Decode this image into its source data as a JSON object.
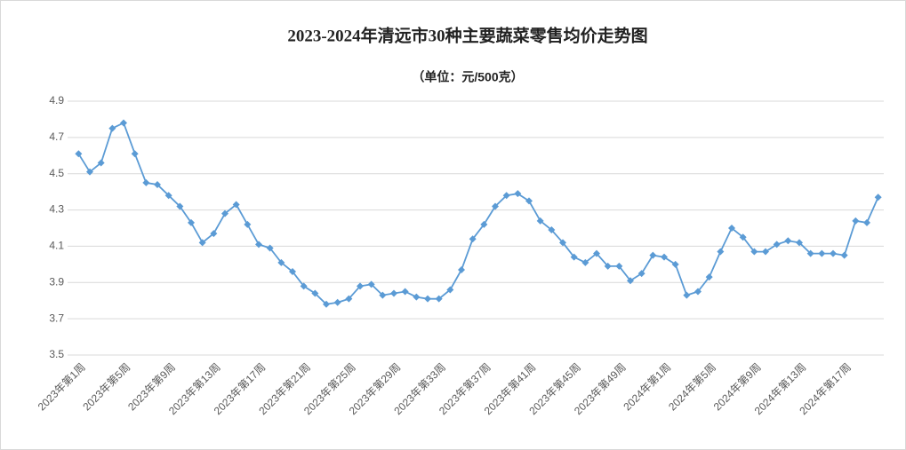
{
  "chart_data": {
    "type": "line",
    "title": "2023-2024年清远市30种主要蔬菜零售均价走势图",
    "subtitle": "（单位：元/500克）",
    "categories": [
      "2023年第1周",
      null,
      null,
      null,
      "2023年第5周",
      null,
      null,
      null,
      "2023年第9周",
      null,
      null,
      null,
      "2023年第13周",
      null,
      null,
      null,
      "2023年第17周",
      null,
      null,
      null,
      "2023年第21周",
      null,
      null,
      null,
      "2023年第25周",
      null,
      null,
      null,
      "2023年第29周",
      null,
      null,
      null,
      "2023年第33周",
      null,
      null,
      null,
      "2023年第37周",
      null,
      null,
      null,
      "2023年第41周",
      null,
      null,
      null,
      "2023年第45周",
      null,
      null,
      null,
      "2023年第49周",
      null,
      null,
      null,
      "2024年第1周",
      null,
      null,
      null,
      "2024年第5周",
      null,
      null,
      null,
      "2024年第9周",
      null,
      null,
      null,
      "2024年第13周",
      null,
      null,
      null,
      "2024年第17周",
      null,
      null,
      null
    ],
    "values": [
      4.61,
      4.51,
      4.56,
      4.75,
      4.78,
      4.61,
      4.45,
      4.44,
      4.38,
      4.32,
      4.23,
      4.12,
      4.17,
      4.28,
      4.33,
      4.22,
      4.11,
      4.09,
      4.01,
      3.96,
      3.88,
      3.84,
      3.78,
      3.79,
      3.81,
      3.88,
      3.89,
      3.83,
      3.84,
      3.85,
      3.82,
      3.81,
      3.81,
      3.86,
      3.97,
      4.14,
      4.22,
      4.32,
      4.38,
      4.39,
      4.35,
      4.24,
      4.19,
      4.12,
      4.04,
      4.01,
      4.06,
      3.99,
      3.99,
      3.91,
      3.95,
      4.05,
      4.04,
      4.0,
      3.83,
      3.85,
      3.93,
      4.07,
      4.2,
      4.15,
      4.07,
      4.07,
      4.11,
      4.13,
      4.12,
      4.06,
      4.06,
      4.06,
      4.05,
      4.24,
      4.23,
      4.37
    ],
    "color": "#5b9bd5",
    "ylim": [
      3.5,
      4.9
    ],
    "yticks": [
      3.5,
      3.7,
      3.9,
      4.1,
      4.3,
      4.5,
      4.7,
      4.9
    ],
    "grid": true
  }
}
